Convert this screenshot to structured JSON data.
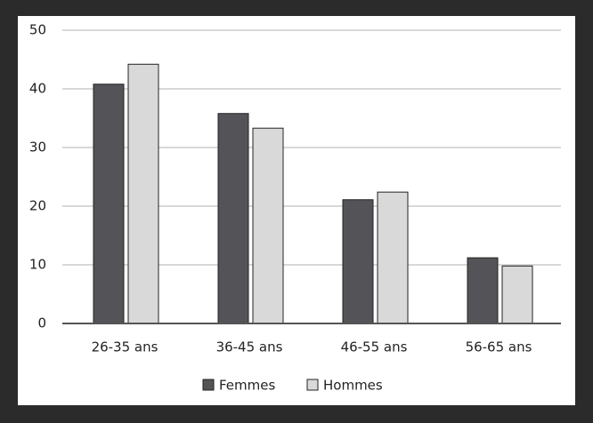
{
  "chart_data": {
    "type": "bar",
    "categories": [
      "26-35 ans",
      "36-45 ans",
      "46-55 ans",
      "56-65 ans"
    ],
    "series": [
      {
        "name": "Femmes",
        "color": "#545458",
        "values": [
          40.8,
          35.8,
          21.1,
          11.2
        ]
      },
      {
        "name": "Hommes",
        "color": "#d9d9d9",
        "values": [
          44.2,
          33.3,
          22.4,
          9.8
        ]
      }
    ],
    "ylim": [
      0,
      50
    ],
    "yticks": [
      0,
      10,
      20,
      30,
      40,
      50
    ],
    "grid": true,
    "legend": "bottom"
  }
}
